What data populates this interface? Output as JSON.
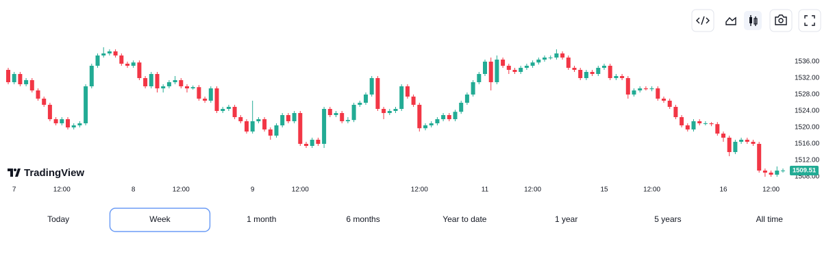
{
  "chart_data": {
    "type": "candlestick",
    "logo": "TradingView",
    "categories": [
      null,
      "7",
      null,
      null,
      null,
      null,
      null,
      null,
      null,
      "12:00",
      null,
      null,
      null,
      null,
      null,
      null,
      null,
      null,
      null,
      null,
      null,
      "8",
      null,
      null,
      null,
      null,
      null,
      null,
      null,
      "12:00",
      null,
      null,
      null,
      null,
      null,
      null,
      null,
      null,
      null,
      null,
      null,
      "9",
      null,
      null,
      null,
      null,
      null,
      null,
      null,
      "12:00",
      null,
      null,
      null,
      null,
      null,
      null,
      null,
      null,
      null,
      null,
      null,
      null,
      null,
      null,
      null,
      null,
      null,
      null,
      null,
      "12:00",
      null,
      null,
      null,
      null,
      null,
      null,
      null,
      null,
      null,
      null,
      "11",
      null,
      null,
      null,
      null,
      null,
      null,
      null,
      "12:00",
      null,
      null,
      null,
      null,
      null,
      null,
      null,
      null,
      null,
      null,
      null,
      "15",
      null,
      null,
      null,
      null,
      null,
      null,
      null,
      "12:00",
      null,
      null,
      null,
      null,
      null,
      null,
      null,
      null,
      null,
      null,
      null,
      "16",
      null,
      null,
      null,
      null,
      null,
      null,
      null,
      "12:00",
      null,
      null
    ],
    "series": [
      {
        "up_color": "#22ab94",
        "down_color": "#f23645",
        "open": [
          1534,
          1531,
          1533,
          1530.5,
          1531.5,
          1529,
          1527,
          1525.5,
          1522,
          1521,
          1522,
          1520,
          1520.5,
          1521,
          1530,
          1535,
          1537.5,
          1538,
          1538.5,
          1537.5,
          1535.5,
          1535,
          1535.8,
          1532,
          1530,
          1533,
          1529.5,
          1530,
          1531,
          1531.5,
          1530,
          1529.5,
          1529.8,
          1527,
          1526.5,
          1529.5,
          1524,
          1524.5,
          1525,
          1522.5,
          1521.5,
          1519,
          1521.5,
          1522,
          1519.5,
          1518,
          1520.5,
          1523,
          1521.5,
          1523.5,
          1516,
          1515.5,
          1517,
          1516,
          1524.5,
          1523,
          1523.5,
          1521.5,
          1521.8,
          1525.5,
          1526,
          1528,
          1532,
          1524.5,
          1523.5,
          1524,
          1524.5,
          1530,
          1527.5,
          1525.5,
          1519.8,
          1520.5,
          1521,
          1522,
          1523,
          1522,
          1523.8,
          1526,
          1528,
          1531,
          1533,
          1536,
          1531,
          1536.5,
          1535,
          1534,
          1533.5,
          1534.5,
          1535,
          1535.8,
          1536.5,
          1537,
          1537,
          1538,
          1537,
          1534.5,
          1534,
          1532,
          1533.5,
          1533,
          1534.5,
          1535,
          1532,
          1532.5,
          1532,
          1528,
          1529,
          1529.5,
          1529.3,
          1529.5,
          1527,
          1526.5,
          1525,
          1522.5,
          1520.5,
          1519.5,
          1521.5,
          1521,
          1521,
          1520.8,
          1518.5,
          1517.5,
          1514,
          1516.5,
          1517,
          1516.5,
          1516,
          1509.5,
          1509,
          1508.5,
          1509.5
        ],
        "high": [
          1534.5,
          1533.5,
          1533.5,
          1532,
          1532,
          1529.5,
          1527.5,
          1526,
          1522.5,
          1522.5,
          1522.5,
          1521,
          1521.5,
          1530.5,
          1535.5,
          1538,
          1539.5,
          1539,
          1539,
          1538,
          1536,
          1536.3,
          1536.3,
          1532.5,
          1533.5,
          1533.5,
          1530.5,
          1531.5,
          1532.5,
          1532,
          1530.5,
          1530.2,
          1530.3,
          1527.5,
          1530,
          1530,
          1525,
          1525.5,
          1525.5,
          1523,
          1522,
          1526.5,
          1522.5,
          1522.5,
          1520,
          1521,
          1523.5,
          1523.5,
          1524,
          1524,
          1516.5,
          1517.5,
          1517.5,
          1525,
          1525,
          1524,
          1524,
          1522.5,
          1526,
          1526.5,
          1528.5,
          1532.5,
          1532.5,
          1525,
          1524.5,
          1525,
          1530.5,
          1530.5,
          1528,
          1526,
          1521,
          1521.5,
          1522.5,
          1523.5,
          1523.5,
          1524.3,
          1526.5,
          1528.5,
          1531.5,
          1533.5,
          1536.5,
          1537,
          1537.5,
          1537,
          1535.5,
          1534.5,
          1535,
          1535.5,
          1536.3,
          1537,
          1537.5,
          1537.5,
          1539,
          1538.5,
          1537.5,
          1535,
          1534.5,
          1534,
          1534,
          1535,
          1535.5,
          1535.5,
          1533,
          1533,
          1532.5,
          1529.5,
          1530,
          1530,
          1530,
          1530,
          1527.5,
          1527,
          1525.5,
          1523,
          1521,
          1522,
          1522,
          1521.5,
          1521.3,
          1521.3,
          1519,
          1518,
          1517,
          1517.5,
          1517.5,
          1517,
          1516.5,
          1510,
          1509.5,
          1510.5,
          1510
        ],
        "low": [
          1530.5,
          1530.5,
          1530,
          1530,
          1528.5,
          1526.5,
          1525,
          1521.5,
          1520.5,
          1520.5,
          1519.5,
          1519.5,
          1520,
          1520.5,
          1529.5,
          1534.5,
          1537,
          1537.5,
          1537,
          1535,
          1534.5,
          1534.5,
          1531.5,
          1529.5,
          1529.5,
          1528.5,
          1528.5,
          1529.5,
          1530.5,
          1529.5,
          1528.5,
          1529.2,
          1526.5,
          1526,
          1526,
          1523.5,
          1523.5,
          1524,
          1522,
          1521,
          1518.5,
          1518.5,
          1521,
          1519,
          1517,
          1517.5,
          1520,
          1521,
          1521,
          1515.5,
          1515,
          1515,
          1515.5,
          1515,
          1522.5,
          1522.5,
          1521,
          1521,
          1521.3,
          1525,
          1525.5,
          1527.5,
          1524,
          1522,
          1523,
          1523.5,
          1524,
          1527,
          1525,
          1519,
          1519.3,
          1520,
          1520.5,
          1521.5,
          1521.5,
          1521.5,
          1523.3,
          1525.5,
          1527.5,
          1530.5,
          1532.5,
          1529,
          1530.5,
          1534.5,
          1533,
          1533,
          1533,
          1534,
          1534.5,
          1535.3,
          1536,
          1536.5,
          1536.5,
          1536.5,
          1534,
          1533.5,
          1531.5,
          1531.5,
          1532.5,
          1532.5,
          1534,
          1531.5,
          1531.5,
          1531.5,
          1527,
          1527.5,
          1528.5,
          1529,
          1528.8,
          1526.5,
          1526,
          1524.5,
          1522,
          1520,
          1519,
          1519,
          1520.5,
          1520.5,
          1520.3,
          1518,
          1516.5,
          1513,
          1513.5,
          1516,
          1516,
          1515.5,
          1509,
          1508,
          1508,
          1508,
          1509
        ],
        "close": [
          1531,
          1533,
          1530.5,
          1531.5,
          1529,
          1527,
          1525.5,
          1522,
          1521,
          1522,
          1520,
          1520.5,
          1521,
          1530,
          1535,
          1537.5,
          1538,
          1538.5,
          1537.5,
          1535.5,
          1535,
          1535.8,
          1532,
          1530,
          1533,
          1529.5,
          1530,
          1531,
          1531.5,
          1530,
          1529.5,
          1529.8,
          1527,
          1526.5,
          1529.5,
          1524,
          1524.5,
          1525,
          1522.5,
          1521.5,
          1519,
          1521.5,
          1522,
          1519.5,
          1518,
          1520.5,
          1523,
          1521.5,
          1523.5,
          1516,
          1515.5,
          1517,
          1516,
          1524.5,
          1523,
          1523.5,
          1521.5,
          1521.8,
          1525.5,
          1526,
          1528,
          1532,
          1524.5,
          1523.5,
          1524,
          1524.5,
          1530,
          1527.5,
          1525.5,
          1519.8,
          1520.5,
          1521,
          1522,
          1523,
          1522,
          1523.8,
          1526,
          1528,
          1531,
          1533,
          1536,
          1531,
          1536.5,
          1535,
          1534,
          1533.5,
          1534.5,
          1535,
          1535.8,
          1536.5,
          1537,
          1537,
          1538,
          1537,
          1534.5,
          1534,
          1532,
          1533.5,
          1533,
          1534.5,
          1535,
          1532,
          1532.5,
          1532,
          1528,
          1529,
          1529.5,
          1529.3,
          1529.5,
          1527,
          1526.5,
          1525,
          1522.5,
          1520.5,
          1519.5,
          1521.5,
          1521,
          1521,
          1520.8,
          1518.5,
          1517.5,
          1514,
          1516.5,
          1517,
          1516.5,
          1516,
          1509.5,
          1509,
          1508.5,
          1509.5,
          1509.51
        ]
      }
    ],
    "ylim": [
      1506,
      1544
    ],
    "yticks": [
      {
        "value": 1508,
        "label": "1508.00"
      },
      {
        "value": 1512,
        "label": "1512.00"
      },
      {
        "value": 1516,
        "label": "1516.00"
      },
      {
        "value": 1520,
        "label": "1520.00"
      },
      {
        "value": 1524,
        "label": "1524.00"
      },
      {
        "value": 1528,
        "label": "1528.00"
      },
      {
        "value": 1532,
        "label": "1532.00"
      },
      {
        "value": 1536,
        "label": "1536.00"
      }
    ],
    "grid": false
  },
  "range_selector": {
    "options": [
      "Today",
      "Week",
      "1 month",
      "6 months",
      "Year to date",
      "1 year",
      "5 years",
      "All time"
    ],
    "selected": 1
  }
}
